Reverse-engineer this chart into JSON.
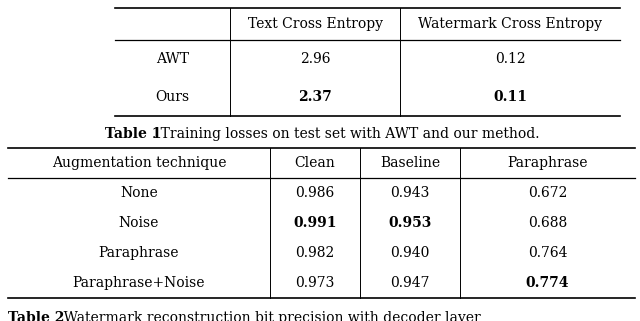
{
  "table1_col_labels": [
    "",
    "Text Cross Entropy",
    "Watermark Cross Entropy"
  ],
  "table1_rows": [
    [
      "AWT",
      "2.96",
      "0.12"
    ],
    [
      "Ours",
      "2.37",
      "0.11"
    ]
  ],
  "table1_bold": [
    [
      false,
      false,
      false
    ],
    [
      false,
      true,
      true
    ]
  ],
  "table1_caption_bold": "Table 1",
  "table1_caption_normal": ". Training losses on test set with AWT and our method.",
  "table2_col_labels": [
    "Augmentation technique",
    "Clean",
    "Baseline",
    "Paraphrase"
  ],
  "table2_rows": [
    [
      "None",
      "0.986",
      "0.943",
      "0.672"
    ],
    [
      "Noise",
      "0.991",
      "0.953",
      "0.688"
    ],
    [
      "Paraphrase",
      "0.982",
      "0.940",
      "0.764"
    ],
    [
      "Paraphrase+Noise",
      "0.973",
      "0.947",
      "0.774"
    ]
  ],
  "table2_bold": [
    [
      false,
      false,
      false,
      false
    ],
    [
      false,
      true,
      true,
      false
    ],
    [
      false,
      false,
      false,
      false
    ],
    [
      false,
      false,
      false,
      true
    ]
  ],
  "table2_caption_bold": "Table 2",
  "table2_caption_normal": ". Watermark reconstruction bit precision with decoder layer substitution approach if text is not modified or attacked using either",
  "bg_color": "#ffffff",
  "font_size": 10,
  "caption_font_size": 10
}
